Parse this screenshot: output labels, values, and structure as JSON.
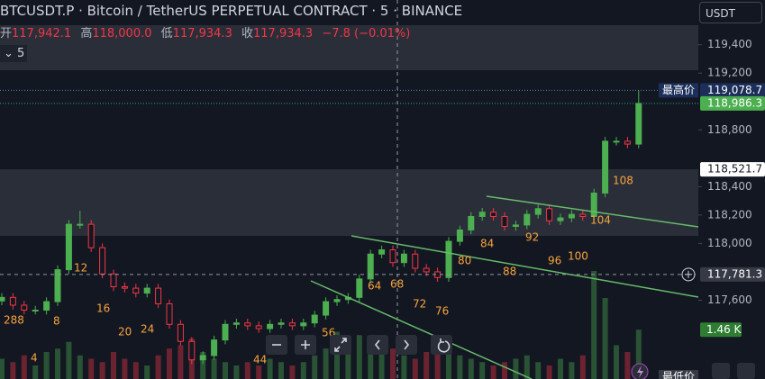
{
  "header": {
    "symbol_line": "BTCUSDT.P · Bitcoin / TetherUS PERPETUAL CONTRACT · 5 · BINANCE",
    "ohlc": [
      {
        "label": "开",
        "value": "117,942.1"
      },
      {
        "label": "高",
        "value": "118,000.0"
      },
      {
        "label": "低",
        "value": "117,934.3"
      },
      {
        "label": "收",
        "value": "117,934.3"
      }
    ],
    "change": "−7.8 (−0.01%)",
    "interval": "5",
    "currency": "USDT"
  },
  "chart_data": {
    "type": "candlestick",
    "up_color": "#4caf50",
    "down_color": "#f23645",
    "open": [
      117595,
      117620,
      117565,
      117530,
      117530,
      117590,
      117815,
      118135,
      118135,
      117970,
      117785,
      117695,
      117685,
      117650,
      117685,
      117575,
      117430,
      117310,
      117180,
      117210,
      117320,
      117430,
      117440,
      117420,
      117400,
      117430,
      117440,
      117420,
      117440,
      117495,
      117590,
      117605,
      117620,
      117750,
      117925,
      117955,
      117865,
      117925,
      117825,
      117800,
      117760,
      118015,
      118095,
      118190,
      118220,
      118190,
      118120,
      118130,
      118205,
      118245,
      118160,
      118180,
      118205,
      118190,
      118355,
      118720,
      118720,
      118700
    ],
    "high": [
      117650,
      117650,
      117595,
      117560,
      117620,
      117845,
      118165,
      118230,
      118165,
      118000,
      117815,
      117725,
      117715,
      117715,
      117715,
      117605,
      117460,
      117340,
      117240,
      117350,
      117460,
      117470,
      117470,
      117450,
      117460,
      117470,
      117470,
      117470,
      117525,
      117620,
      117635,
      117650,
      117780,
      117955,
      117985,
      117985,
      117955,
      117955,
      117855,
      117830,
      118045,
      118125,
      118220,
      118250,
      118250,
      118220,
      118160,
      118235,
      118275,
      118275,
      118210,
      118235,
      118235,
      118385,
      118750,
      118750,
      118750,
      119078.7
    ],
    "low": [
      117565,
      117535,
      117500,
      117500,
      117500,
      117560,
      117785,
      118105,
      117940,
      117755,
      117665,
      117655,
      117620,
      117620,
      117545,
      117400,
      117280,
      117150,
      117150,
      117180,
      117290,
      117400,
      117390,
      117370,
      117370,
      117400,
      117390,
      117390,
      117410,
      117465,
      117560,
      117575,
      117590,
      117720,
      117895,
      117835,
      117835,
      117795,
      117770,
      117730,
      117730,
      117985,
      118065,
      118160,
      118160,
      118090,
      118090,
      118100,
      118175,
      118130,
      118130,
      118150,
      118160,
      118160,
      118325,
      118690,
      118670,
      118670
    ],
    "close": [
      117620,
      117565,
      117530,
      117530,
      117590,
      117815,
      118135,
      118135,
      117970,
      117785,
      117695,
      117685,
      117650,
      117685,
      117575,
      117430,
      117310,
      117180,
      117210,
      117320,
      117430,
      117440,
      117420,
      117400,
      117430,
      117440,
      117420,
      117440,
      117495,
      117590,
      117605,
      117620,
      117750,
      117925,
      117955,
      117865,
      117925,
      117825,
      117800,
      117760,
      118015,
      118095,
      118190,
      118220,
      118190,
      118120,
      118130,
      118205,
      118245,
      118160,
      118180,
      118205,
      118190,
      118355,
      118720,
      118720,
      118700,
      118986.3
    ],
    "volume": [
      600,
      500,
      700,
      400,
      800,
      900,
      1100,
      700,
      600,
      500,
      800,
      600,
      500,
      400,
      700,
      900,
      1000,
      1200,
      800,
      600,
      500,
      400,
      500,
      400,
      600,
      500,
      400,
      500,
      700,
      900,
      1400,
      1100,
      1300,
      1000,
      800,
      900,
      700,
      600,
      800,
      1000,
      900,
      700,
      600,
      500,
      400,
      500,
      600,
      700,
      500,
      400,
      600,
      500,
      700,
      3200,
      2400,
      1000,
      800,
      1460
    ],
    "ylim": [
      117045,
      119715
    ],
    "yticks": [
      {
        "value": 119400,
        "label": "119,400"
      },
      {
        "value": 119200,
        "label": "119,200"
      },
      {
        "value": 118800,
        "label": "118,800"
      },
      {
        "value": 118400,
        "label": "118,400"
      },
      {
        "value": 118200,
        "label": "118,200"
      },
      {
        "value": 118000,
        "label": "118,000"
      },
      {
        "value": 117600,
        "label": "117,600"
      }
    ],
    "high_tag": "最高价",
    "low_tag": "最低价",
    "high_price": {
      "value": 119078.7,
      "label": "119,078.7"
    },
    "last_price": {
      "value": 118986.3,
      "label": "118,986.3"
    },
    "marker_price": {
      "value": 118521.7,
      "label": "118,521.7"
    },
    "crosshair_price": {
      "value": 117781.3,
      "label": "117,781.3"
    },
    "last_volume": {
      "value": 1460,
      "label": "1.46 K"
    },
    "bar_counts": [
      "288",
      "4",
      "8",
      "12",
      "16",
      "20",
      "24",
      "44",
      "56",
      "64",
      "68",
      "72",
      "76",
      "80",
      "84",
      "88",
      "92",
      "96",
      "100",
      "104",
      "108"
    ]
  }
}
